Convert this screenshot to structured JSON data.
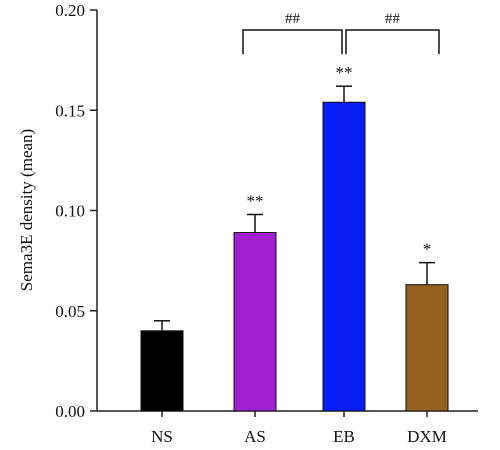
{
  "chart_data": {
    "type": "bar",
    "title": "",
    "xlabel": "",
    "ylabel": "Sema3E density (mean)",
    "ylim": [
      0,
      0.2
    ],
    "yticks": [
      "0.00",
      "0.05",
      "0.10",
      "0.15",
      "0.20"
    ],
    "categories": [
      "NS",
      "AS",
      "EB",
      "DXM"
    ],
    "values": [
      0.04,
      0.089,
      0.154,
      0.063
    ],
    "errors": [
      0.005,
      0.009,
      0.008,
      0.011
    ],
    "colors": [
      "#000000",
      "#a020d0",
      "#0a1cf5",
      "#96601e"
    ],
    "significance": [
      "",
      "**",
      "**",
      "*"
    ],
    "brackets": [
      {
        "from": "AS",
        "to": "EB",
        "label": "##"
      },
      {
        "from": "EB",
        "to": "DXM",
        "label": "##"
      }
    ],
    "grid": false,
    "legend": "none"
  }
}
